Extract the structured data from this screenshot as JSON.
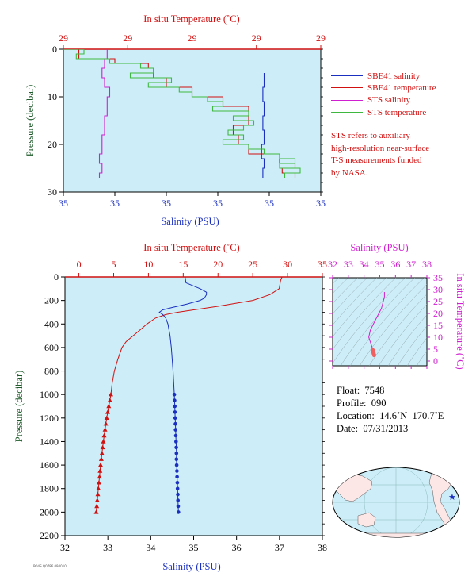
{
  "chart_data": [
    {
      "type": "line",
      "panel": "near-surface profile",
      "xlabel_top": "In situ Temperature (˚C)",
      "xlabel_bottom": "Salinity (PSU)",
      "ylabel": "Pressure (decibar)",
      "ylim": [
        30,
        0
      ],
      "top_ticks": [
        "29",
        "29",
        "29",
        "29",
        "29"
      ],
      "bottom_ticks": [
        "35",
        "35",
        "35",
        "35",
        "35",
        "35"
      ],
      "y_ticks": [
        "0",
        "10",
        "20",
        "30"
      ],
      "legend": [
        {
          "name": "SBE41 salinity",
          "color": "#1a2fbf"
        },
        {
          "name": "SBE41 temperature",
          "color": "#d11010"
        },
        {
          "name": "STS salinity",
          "color": "#d01fd0"
        },
        {
          "name": "STS temperature",
          "color": "#3fb83f"
        }
      ],
      "note": [
        "STS refers to auxiliary",
        "high-resolution near-surface",
        "T-S measurements funded",
        "by NASA."
      ],
      "series": [
        {
          "name": "SBE41 salinity",
          "p": [
            5,
            8,
            11,
            14,
            17,
            20,
            23,
            25,
            27
          ],
          "x_frac": [
            0.78,
            0.78,
            0.775,
            0.78,
            0.775,
            0.78,
            0.77,
            0.78,
            0.775
          ]
        },
        {
          "name": "STS salinity",
          "p": [
            0,
            2,
            4,
            6,
            8,
            10,
            12,
            14,
            16,
            18,
            20,
            22,
            24,
            26,
            27
          ],
          "x_frac": [
            0.17,
            0.17,
            0.16,
            0.15,
            0.16,
            0.18,
            0.17,
            0.17,
            0.16,
            0.16,
            0.15,
            0.15,
            0.14,
            0.15,
            0.14
          ]
        },
        {
          "name": "SBE41 temperature",
          "p": [
            0,
            2,
            3,
            4,
            6,
            8,
            10,
            12,
            14,
            16,
            18,
            20,
            22,
            24,
            25,
            26,
            27
          ],
          "x_frac": [
            0.02,
            0.06,
            0.2,
            0.33,
            0.35,
            0.4,
            0.5,
            0.62,
            0.72,
            0.72,
            0.66,
            0.68,
            0.72,
            0.84,
            0.9,
            0.85,
            0.9
          ]
        },
        {
          "name": "STS temperature",
          "p": [
            0,
            1,
            2,
            3,
            4,
            5,
            6,
            7,
            8,
            9,
            10,
            11,
            12,
            13,
            14,
            15,
            16,
            17,
            18,
            19,
            20,
            21,
            22,
            23,
            24,
            25,
            26,
            27
          ],
          "x_frac": [
            0.0,
            0.08,
            0.05,
            0.18,
            0.3,
            0.35,
            0.26,
            0.42,
            0.33,
            0.45,
            0.5,
            0.56,
            0.62,
            0.58,
            0.72,
            0.66,
            0.74,
            0.7,
            0.64,
            0.7,
            0.62,
            0.72,
            0.78,
            0.84,
            0.9,
            0.84,
            0.92,
            0.86
          ]
        }
      ]
    },
    {
      "type": "line",
      "panel": "full profile",
      "xlabel_top": "In situ Temperature (˚C)",
      "xlabel_bottom": "Salinity (PSU)",
      "ylabel": "Pressure (decibar)",
      "temp_lim": [
        -2,
        35
      ],
      "sal_lim": [
        32,
        38
      ],
      "ylim": [
        2200,
        0
      ],
      "temp_ticks": [
        "0",
        "5",
        "10",
        "15",
        "20",
        "25",
        "30",
        "35"
      ],
      "sal_ticks": [
        "32",
        "33",
        "34",
        "35",
        "36",
        "37",
        "38"
      ],
      "p_ticks": [
        "0",
        "200",
        "400",
        "600",
        "800",
        "1000",
        "1200",
        "1400",
        "1600",
        "1800",
        "2000",
        "2200"
      ],
      "temperature": {
        "p": [
          0,
          30,
          100,
          150,
          200,
          250,
          280,
          300,
          320,
          350,
          400,
          450,
          500,
          550,
          600,
          700,
          800,
          900,
          1000
        ],
        "t": [
          29.2,
          29.0,
          28.8,
          27.5,
          25.0,
          20.0,
          16.5,
          14.2,
          12.5,
          11.0,
          9.8,
          8.8,
          7.8,
          6.8,
          6.2,
          5.6,
          5.1,
          4.8,
          4.6
        ]
      },
      "temperature_bottles": {
        "p": [
          1000,
          1050,
          1100,
          1150,
          1200,
          1250,
          1300,
          1350,
          1400,
          1450,
          1500,
          1550,
          1600,
          1650,
          1700,
          1750,
          1800,
          1850,
          1900,
          1950,
          2000
        ],
        "t": [
          4.6,
          4.45,
          4.3,
          4.15,
          4.0,
          3.88,
          3.76,
          3.64,
          3.52,
          3.42,
          3.32,
          3.22,
          3.12,
          3.04,
          2.96,
          2.88,
          2.8,
          2.72,
          2.65,
          2.58,
          2.5
        ]
      },
      "salinity": {
        "p": [
          0,
          50,
          100,
          130,
          150,
          180,
          200,
          230,
          260,
          280,
          300,
          320,
          350,
          400,
          500,
          600,
          800,
          1000
        ],
        "s": [
          34.8,
          34.82,
          35.15,
          35.3,
          35.3,
          35.25,
          35.15,
          34.85,
          34.5,
          34.28,
          34.2,
          34.28,
          34.35,
          34.4,
          34.45,
          34.48,
          34.52,
          34.55
        ]
      },
      "salinity_bottles": {
        "p": [
          1000,
          1050,
          1100,
          1150,
          1200,
          1250,
          1300,
          1350,
          1400,
          1450,
          1500,
          1550,
          1600,
          1650,
          1700,
          1750,
          1800,
          1850,
          1900,
          1950,
          2000
        ],
        "s": [
          34.55,
          34.555,
          34.56,
          34.565,
          34.57,
          34.575,
          34.58,
          34.585,
          34.59,
          34.595,
          34.6,
          34.6,
          34.605,
          34.61,
          34.615,
          34.62,
          34.625,
          34.63,
          34.635,
          34.64,
          34.645
        ]
      }
    },
    {
      "type": "scatter",
      "panel": "T-S diagram",
      "xlabel": "Salinity (PSU)",
      "ylabel": "In situ Temperature (˚C)",
      "xlim": [
        32,
        38
      ],
      "ylim": [
        -2,
        35
      ],
      "x_ticks": [
        "32",
        "33",
        "34",
        "35",
        "36",
        "37",
        "38"
      ],
      "y_ticks": [
        "0",
        "5",
        "10",
        "15",
        "20",
        "25",
        "30",
        "35"
      ],
      "line": {
        "s": [
          35.3,
          35.3,
          35.1,
          34.7,
          34.4,
          34.3,
          34.4,
          34.5,
          34.55
        ],
        "t": [
          29,
          27,
          22,
          17,
          13,
          10,
          8,
          6,
          4.6
        ]
      },
      "points": {
        "s": [
          34.55,
          34.57,
          34.6,
          34.62,
          34.64
        ],
        "t": [
          4.6,
          4.0,
          3.4,
          2.9,
          2.5
        ]
      }
    }
  ],
  "info": {
    "float": "Float:  7548",
    "profile": "Profile:  090",
    "location": "Location:  14.6˚N  170.7˚E",
    "date": "Date:  07/31/2013"
  },
  "map": {
    "marker_lat": 14.6,
    "marker_lon": 170.7
  },
  "credit": "PO4S Q0786 090010",
  "colors": {
    "temperature": "#d11010",
    "salinity": "#1a2fbf",
    "sts_salinity": "#d01fd0",
    "sts_temperature": "#3fb83f",
    "plot_bg": "#cdeef8",
    "pressure_label": "#1e5a2a",
    "ts_label": "#d01fd0"
  }
}
